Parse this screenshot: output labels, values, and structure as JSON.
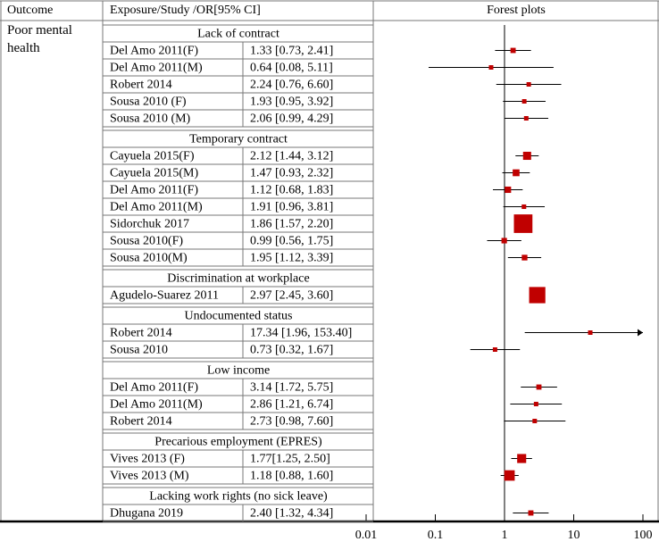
{
  "chart_data": {
    "type": "forest",
    "header": [
      "Outcome",
      "Exposure/Study /OR[95% CI]",
      "Forest plots"
    ],
    "outcome": "Poor mental health",
    "color": "#c00000",
    "log": true,
    "xlim": [
      0.01,
      100
    ],
    "xticks": [
      0.01,
      0.1,
      1,
      10,
      100
    ],
    "groups": [
      {
        "name": "Lack of contract",
        "studies": [
          "Del Amo 2011(F)",
          "Del Amo 2011(M)",
          "Robert 2014",
          "Sousa 2010 (F)",
          "Sousa 2010 (M)"
        ],
        "values": [
          1.33,
          0.64,
          2.24,
          1.93,
          2.06
        ],
        "lower": [
          0.73,
          0.08,
          0.76,
          0.95,
          0.99
        ],
        "upper": [
          2.41,
          5.11,
          6.6,
          3.92,
          4.29
        ],
        "value_labels": [
          "1.33 [0.73, 2.41]",
          "0.64 [0.08, 5.11]",
          "2.24 [0.76, 6.60]",
          "1.93 [0.95, 3.92]",
          "2.06 [0.99, 4.29]"
        ]
      },
      {
        "name": "Temporary contract",
        "studies": [
          "Cayuela 2015(F)",
          "Cayuela 2015(M)",
          "Del Amo 2011(F)",
          "Del Amo 2011(M)",
          "Sidorchuk 2017",
          "Sousa 2010(F)",
          "Sousa 2010(M)"
        ],
        "values": [
          2.12,
          1.47,
          1.12,
          1.91,
          1.86,
          0.99,
          1.95
        ],
        "lower": [
          1.44,
          0.93,
          0.68,
          0.96,
          1.57,
          0.56,
          1.12
        ],
        "upper": [
          3.12,
          2.32,
          1.83,
          3.81,
          2.2,
          1.75,
          3.39
        ],
        "value_labels": [
          "2.12 [1.44, 3.12]",
          "1.47 [0.93, 2.32]",
          "1.12 [0.68, 1.83]",
          "1.91 [0.96, 3.81]",
          "1.86 [1.57, 2.20]",
          "0.99 [0.56, 1.75]",
          "1.95 [1.12, 3.39]"
        ]
      },
      {
        "name": "Discrimination at workplace",
        "studies": [
          "Agudelo-Suarez 2011"
        ],
        "values": [
          2.97
        ],
        "lower": [
          2.45
        ],
        "upper": [
          3.6
        ],
        "value_labels": [
          "2.97 [2.45, 3.60]"
        ]
      },
      {
        "name": "Undocumented status",
        "studies": [
          "Robert 2014",
          "Sousa 2010"
        ],
        "values": [
          17.34,
          0.73
        ],
        "lower": [
          1.96,
          0.32
        ],
        "upper": [
          153.4,
          1.67
        ],
        "value_labels": [
          "17.34 [1.96, 153.40]",
          "0.73 [0.32, 1.67]"
        ]
      },
      {
        "name": "Low income",
        "studies": [
          "Del Amo 2011(F)",
          "Del Amo 2011(M)",
          "Robert 2014"
        ],
        "values": [
          3.14,
          2.86,
          2.73
        ],
        "lower": [
          1.72,
          1.21,
          0.98
        ],
        "upper": [
          5.75,
          6.74,
          7.6
        ],
        "value_labels": [
          "3.14 [1.72, 5.75]",
          "2.86 [1.21, 6.74]",
          "2.73 [0.98, 7.60]"
        ]
      },
      {
        "name": "Precarious employment (EPRES)",
        "studies": [
          "Vives 2013 (F)",
          "Vives 2013 (M)"
        ],
        "values": [
          1.77,
          1.18
        ],
        "lower": [
          1.25,
          0.88
        ],
        "upper": [
          2.5,
          1.6
        ],
        "value_labels": [
          "1.77[1.25, 2.50]",
          "1.18 [0.88, 1.60]"
        ]
      },
      {
        "name": "Lacking work rights (no sick leave)",
        "studies": [
          "Dhugana 2019"
        ],
        "values": [
          2.4
        ],
        "lower": [
          1.32
        ],
        "upper": [
          4.34
        ],
        "value_labels": [
          "2.40 [1.32, 4.34]"
        ]
      }
    ]
  }
}
